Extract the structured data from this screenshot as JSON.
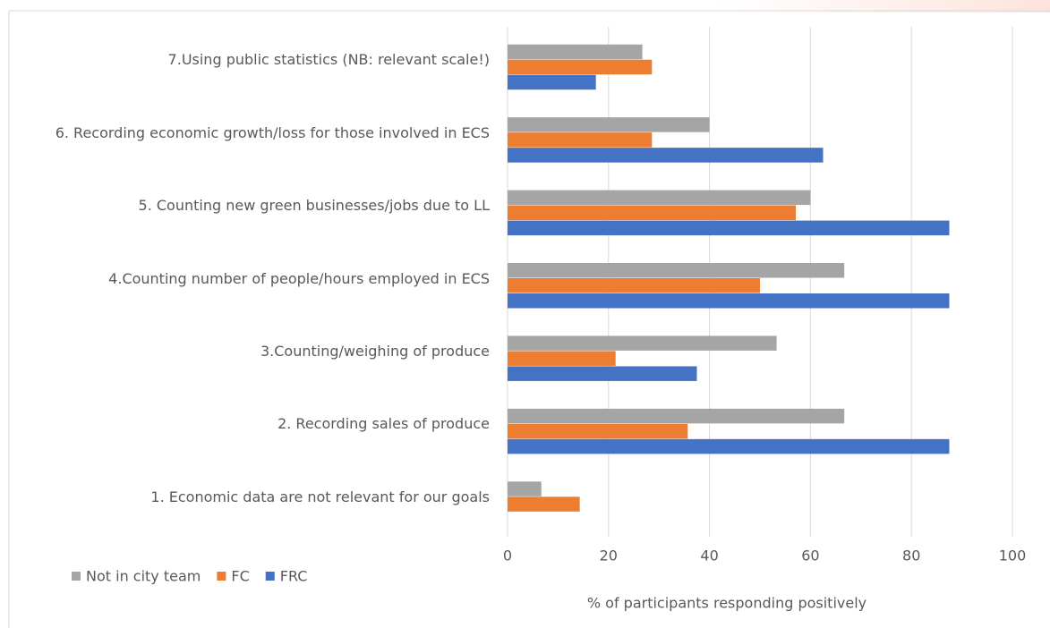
{
  "chart_data": {
    "type": "bar",
    "orientation": "horizontal",
    "categories": [
      "1. Economic data are not relevant for our goals",
      "2. Recording sales of produce",
      "3.Counting/weighing of produce",
      "4.Counting number of people/hours employed in ECS",
      "5. Counting new green businesses/jobs due to LL",
      "6. Recording economic growth/loss for those involved in ECS",
      "7.Using public statistics (NB: relevant scale!)"
    ],
    "series": [
      {
        "name": "Not in city team",
        "color": "#a5a5a5",
        "values": [
          6.7,
          66.7,
          53.3,
          66.7,
          60,
          40,
          26.7
        ]
      },
      {
        "name": "FC",
        "color": "#ed7d31",
        "values": [
          14.3,
          35.7,
          21.4,
          50,
          57.1,
          28.6,
          28.6
        ]
      },
      {
        "name": "FRC",
        "color": "#4472c4",
        "values": [
          0,
          87.5,
          37.5,
          87.5,
          87.5,
          62.5,
          17.5
        ]
      }
    ],
    "xlim": [
      0,
      100
    ],
    "xticks": [
      0,
      20,
      40,
      60,
      80,
      100
    ],
    "grid": true,
    "xlabel": "% of participants responding positively",
    "legend": "bottom-left"
  }
}
